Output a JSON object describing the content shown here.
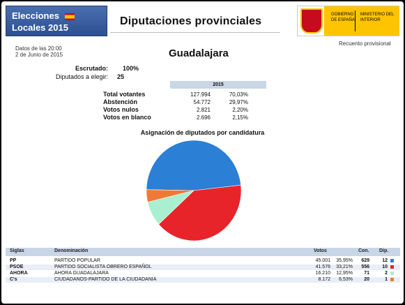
{
  "header": {
    "logo_line1": "Elecciones",
    "logo_line2": "Locales 2015",
    "title": "Diputaciones provinciales",
    "gov_label1": "GOBIERNO DE ESPAÑA",
    "gov_label2": "MINISTERIO DEL INTERIOR",
    "recount": "Recuento provisional"
  },
  "info": {
    "date_line1": "Datos de las 20:00",
    "date_line2": "2 de Junio de 2015",
    "province": "Guadalajara",
    "scrutiny_label": "Escrutado:",
    "scrutiny_value": "100%",
    "deputies_label": "Diputados a elegir:",
    "deputies_value": "25"
  },
  "summary": {
    "year": "2015",
    "rows": [
      {
        "label": "Total votantes",
        "abs": "127.994",
        "pct": "70,03%"
      },
      {
        "label": "Abstención",
        "abs": "54.772",
        "pct": "29,97%"
      },
      {
        "label": "Votos nulos",
        "abs": "2.821",
        "pct": "2,20%"
      },
      {
        "label": "Votos en blanco",
        "abs": "2.696",
        "pct": "2,15%"
      }
    ]
  },
  "chart": {
    "title": "Asignación de diputados por candidatura"
  },
  "chart_data": {
    "type": "pie",
    "labels": [
      "PP",
      "PSOE",
      "AHORA",
      "C's"
    ],
    "values": [
      12,
      10,
      2,
      1
    ],
    "colors": [
      "#2b7fd4",
      "#e8242b",
      "#a8f0d0",
      "#f07a35"
    ]
  },
  "results": {
    "headers": {
      "siglas": "Siglas",
      "denominacion": "Denominación",
      "votos": "Votos",
      "con": "Con.",
      "dip": "Dip."
    },
    "rows": [
      {
        "siglas": "PP",
        "name": "PARTIDO POPULAR",
        "votes": "45.001",
        "pct": "35,95%",
        "con": "629",
        "dip": "12",
        "color": "#2b7fd4"
      },
      {
        "siglas": "PSOE",
        "name": "PARTIDO SOCIALISTA OBRERO ESPAÑOL",
        "votes": "41.576",
        "pct": "33,21%",
        "con": "556",
        "dip": "10",
        "color": "#e8242b"
      },
      {
        "siglas": "AHORA",
        "name": "AHORA GUADALAJARA",
        "votes": "16.210",
        "pct": "12,95%",
        "con": "71",
        "dip": "2",
        "color": "#a8f0d0"
      },
      {
        "siglas": "C's",
        "name": "CIUDADANOS-PARTIDO DE LA CIUDADANIA",
        "votes": "8.172",
        "pct": "6,53%",
        "con": "20",
        "dip": "1",
        "color": "#f07a35"
      }
    ]
  }
}
